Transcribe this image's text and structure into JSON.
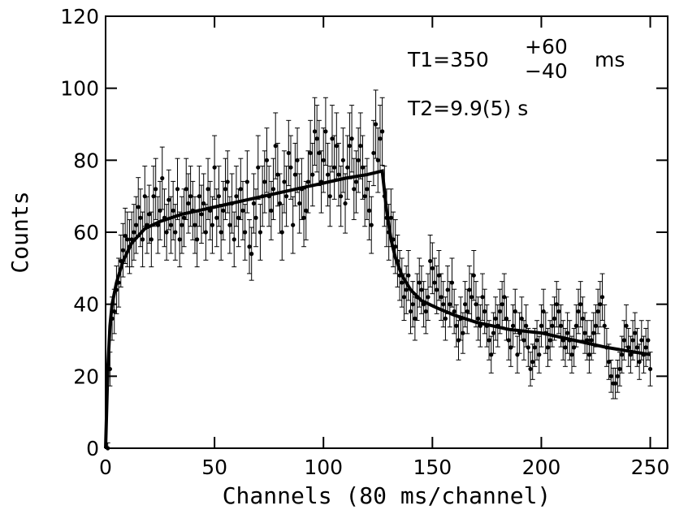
{
  "chart_data": {
    "type": "scatter",
    "xlabel": "Channels (80 ms/channel)",
    "ylabel": "Counts",
    "xlim": [
      0,
      258
    ],
    "ylim": [
      0,
      120
    ],
    "x_ticks": [
      "0",
      "50",
      "100",
      "150",
      "200",
      "250"
    ],
    "y_ticks": [
      "0",
      "20",
      "40",
      "60",
      "80",
      "100",
      "120"
    ],
    "annotations": {
      "t1_main": "T1=350",
      "t1_plus": "+60",
      "t1_minus": "−40",
      "t1_unit": "ms",
      "t2": "T2=9.9(5) s"
    },
    "grid": false,
    "series": [
      {
        "kind": "data_points_with_error_bars",
        "x": [
          1,
          2,
          3,
          4,
          5,
          6,
          7,
          8,
          9,
          10,
          11,
          12,
          13,
          14,
          15,
          16,
          17,
          18,
          19,
          20,
          21,
          22,
          23,
          24,
          25,
          26,
          27,
          28,
          29,
          30,
          31,
          32,
          33,
          34,
          35,
          36,
          37,
          38,
          39,
          40,
          41,
          42,
          43,
          44,
          45,
          46,
          47,
          48,
          49,
          50,
          51,
          52,
          53,
          54,
          55,
          56,
          57,
          58,
          59,
          60,
          61,
          62,
          63,
          64,
          65,
          66,
          67,
          68,
          69,
          70,
          71,
          72,
          73,
          74,
          75,
          76,
          77,
          78,
          79,
          80,
          81,
          82,
          83,
          84,
          85,
          86,
          87,
          88,
          89,
          90,
          91,
          92,
          93,
          94,
          95,
          96,
          97,
          98,
          99,
          100,
          101,
          102,
          103,
          104,
          105,
          106,
          107,
          108,
          109,
          110,
          111,
          112,
          113,
          114,
          115,
          116,
          117,
          118,
          119,
          120,
          121,
          122,
          123,
          124,
          125,
          126,
          127,
          128,
          129,
          130,
          131,
          132,
          133,
          134,
          135,
          136,
          137,
          138,
          139,
          140,
          141,
          142,
          143,
          144,
          145,
          146,
          147,
          148,
          149,
          150,
          151,
          152,
          153,
          154,
          155,
          156,
          157,
          158,
          159,
          160,
          161,
          162,
          163,
          164,
          165,
          166,
          167,
          168,
          169,
          170,
          171,
          172,
          173,
          174,
          175,
          176,
          177,
          178,
          179,
          180,
          181,
          182,
          183,
          184,
          185,
          186,
          187,
          188,
          189,
          190,
          191,
          192,
          193,
          194,
          195,
          196,
          197,
          198,
          199,
          200,
          201,
          202,
          203,
          204,
          205,
          206,
          207,
          208,
          209,
          210,
          211,
          212,
          213,
          214,
          215,
          216,
          217,
          218,
          219,
          220,
          221,
          222,
          223,
          224,
          225,
          226,
          227,
          228,
          229,
          230,
          231,
          232,
          233,
          234,
          235,
          236,
          237,
          238,
          239,
          240,
          241,
          242,
          243,
          244,
          245,
          246,
          247,
          248,
          249,
          250
        ],
        "y": [
          0,
          22,
          36,
          38,
          44,
          46,
          52,
          55,
          59,
          58,
          56,
          58,
          60,
          62,
          67,
          64,
          58,
          70,
          62,
          65,
          58,
          70,
          72,
          62,
          66,
          75,
          64,
          60,
          69,
          62,
          66,
          60,
          72,
          58,
          62,
          64,
          72,
          68,
          70,
          66,
          62,
          58,
          70,
          65,
          68,
          60,
          72,
          66,
          62,
          78,
          64,
          70,
          60,
          66,
          72,
          74,
          62,
          68,
          58,
          70,
          64,
          72,
          66,
          60,
          74,
          56,
          54,
          68,
          64,
          78,
          60,
          70,
          74,
          80,
          70,
          66,
          72,
          84,
          76,
          68,
          60,
          74,
          70,
          82,
          78,
          62,
          76,
          80,
          68,
          72,
          64,
          66,
          74,
          82,
          76,
          88,
          86,
          82,
          74,
          80,
          88,
          76,
          70,
          86,
          78,
          84,
          76,
          70,
          80,
          68,
          78,
          84,
          86,
          72,
          74,
          80,
          84,
          78,
          70,
          72,
          66,
          62,
          82,
          90,
          80,
          86,
          88,
          70,
          64,
          60,
          64,
          58,
          56,
          52,
          48,
          46,
          42,
          44,
          48,
          38,
          40,
          36,
          42,
          46,
          44,
          40,
          38,
          42,
          52,
          50,
          46,
          44,
          48,
          42,
          40,
          36,
          44,
          40,
          46,
          38,
          34,
          30,
          36,
          32,
          40,
          38,
          44,
          42,
          48,
          40,
          36,
          34,
          42,
          38,
          34,
          30,
          26,
          32,
          36,
          34,
          38,
          40,
          42,
          36,
          30,
          28,
          34,
          38,
          26,
          32,
          36,
          30,
          34,
          28,
          22,
          24,
          28,
          30,
          26,
          34,
          38,
          32,
          28,
          30,
          34,
          36,
          40,
          38,
          34,
          30,
          28,
          32,
          30,
          26,
          28,
          34,
          38,
          40,
          36,
          32,
          30,
          26,
          30,
          32,
          34,
          38,
          40,
          42,
          34,
          28,
          24,
          20,
          18,
          18,
          20,
          22,
          26,
          30,
          34,
          28,
          26,
          30,
          32,
          28,
          24,
          30,
          26,
          28,
          30,
          22
        ],
        "yerr_note": "error bars approx ±sqrt(N)"
      },
      {
        "kind": "fit_curve",
        "rise_x": [
          0,
          1,
          2,
          3,
          5,
          8,
          12,
          18,
          25,
          35,
          50,
          65,
          80,
          95,
          110,
          120,
          127
        ],
        "rise_y": [
          0,
          22,
          34,
          40,
          46,
          52,
          57,
          61,
          63,
          65,
          67,
          69,
          71,
          73,
          75,
          76,
          77
        ],
        "decay_x": [
          127,
          129,
          131,
          133,
          136,
          140,
          145,
          152,
          160,
          170,
          185,
          200,
          215,
          230,
          240,
          250
        ],
        "decay_y": [
          77,
          66,
          58,
          53,
          48,
          44,
          41,
          39,
          37,
          35,
          33,
          32,
          30,
          28,
          27,
          26
        ]
      }
    ]
  }
}
